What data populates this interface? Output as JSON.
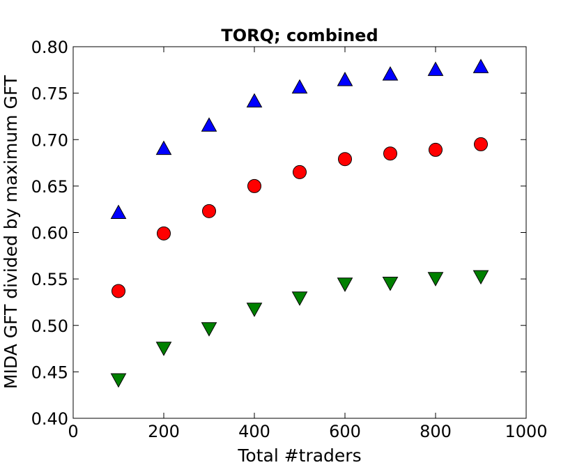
{
  "chart_data": {
    "type": "scatter",
    "title": "TORQ; combined",
    "xlabel": "Total #traders",
    "ylabel": "MIDA GFT divided by maximum GFT",
    "xlim": [
      0,
      1000
    ],
    "ylim": [
      0.4,
      0.8
    ],
    "xticks": [
      "0",
      "200",
      "400",
      "600",
      "800",
      "1000"
    ],
    "yticks": [
      "0.40",
      "0.45",
      "0.50",
      "0.55",
      "0.60",
      "0.65",
      "0.70",
      "0.75",
      "0.80"
    ],
    "grid": false,
    "legend": "none",
    "series": [
      {
        "marker": "triangle-up",
        "color": "#0000ff",
        "x": [
          100,
          200,
          300,
          400,
          500,
          600,
          700,
          800,
          900
        ],
        "y": [
          0.621,
          0.69,
          0.715,
          0.741,
          0.756,
          0.764,
          0.77,
          0.775,
          0.778
        ]
      },
      {
        "marker": "circle",
        "color": "#ff0000",
        "x": [
          100,
          200,
          300,
          400,
          500,
          600,
          700,
          800,
          900
        ],
        "y": [
          0.537,
          0.599,
          0.623,
          0.65,
          0.665,
          0.679,
          0.685,
          0.689,
          0.695
        ]
      },
      {
        "marker": "triangle-down",
        "color": "#008000",
        "x": [
          100,
          200,
          300,
          400,
          500,
          600,
          700,
          800,
          900
        ],
        "y": [
          0.442,
          0.476,
          0.497,
          0.518,
          0.53,
          0.545,
          0.546,
          0.551,
          0.553
        ]
      }
    ]
  }
}
